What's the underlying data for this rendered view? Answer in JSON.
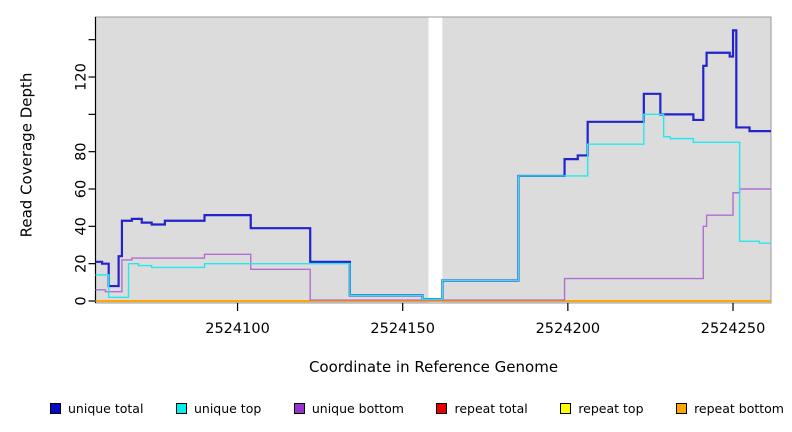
{
  "chart_data": {
    "type": "line",
    "subtype": "step-after",
    "title": "",
    "xlabel": "Coordinate in Reference Genome",
    "ylabel": "Read Coverage Depth",
    "x_domain": [
      2524057,
      2524261.5
    ],
    "y_domain_visible": [
      0,
      152
    ],
    "x_ticks": [
      2524100,
      2524150,
      2524200,
      2524250
    ],
    "x_tick_labels": [
      "2524100",
      "2524150",
      "2524200",
      "2524250"
    ],
    "y_ticks": [
      0,
      20,
      40,
      60,
      80,
      100,
      120,
      140
    ],
    "y_tick_labels_shown": [
      0,
      20,
      40,
      60,
      80,
      120
    ],
    "grid": false,
    "panel_background": "#dcdcdc",
    "panel_border": "#9a9a9a",
    "gap_band": {
      "x_start": 2524157.8,
      "x_end": 2524162,
      "color": "#ffffff"
    },
    "legend_position": "bottom",
    "series": [
      {
        "name": "repeat total",
        "color": "#e00000",
        "width": 1.4,
        "steps": [
          [
            2524057,
            0
          ]
        ]
      },
      {
        "name": "repeat top",
        "color": "#ffff00",
        "width": 1.4,
        "steps": [
          [
            2524057,
            0
          ]
        ]
      },
      {
        "name": "repeat bottom",
        "color": "#ffa500",
        "width": 1.8,
        "steps": [
          [
            2524057,
            0
          ]
        ]
      },
      {
        "name": "unique total",
        "color": "#2323ce",
        "width": 2.2,
        "steps": [
          [
            2524057,
            21
          ],
          [
            2524059,
            20
          ],
          [
            2524061,
            8
          ],
          [
            2524064,
            24
          ],
          [
            2524065,
            43
          ],
          [
            2524068,
            44
          ],
          [
            2524071,
            42
          ],
          [
            2524074,
            41
          ],
          [
            2524078,
            43
          ],
          [
            2524090,
            46
          ],
          [
            2524104,
            39
          ],
          [
            2524122,
            21
          ],
          [
            2524134,
            3
          ],
          [
            2524156,
            1
          ],
          [
            2524162,
            11
          ],
          [
            2524185,
            67
          ],
          [
            2524199,
            76
          ],
          [
            2524203,
            78
          ],
          [
            2524206,
            96
          ],
          [
            2524223,
            111
          ],
          [
            2524228,
            100
          ],
          [
            2524238,
            97
          ],
          [
            2524241,
            126
          ],
          [
            2524242,
            133
          ],
          [
            2524249,
            131
          ],
          [
            2524250,
            145
          ],
          [
            2524251,
            93
          ],
          [
            2524255,
            91
          ]
        ]
      },
      {
        "name": "unique bottom",
        "color": "#b06fd0",
        "width": 1.4,
        "steps": [
          [
            2524057,
            6
          ],
          [
            2524060,
            5
          ],
          [
            2524065,
            22
          ],
          [
            2524068,
            23
          ],
          [
            2524090,
            25
          ],
          [
            2524104,
            17
          ],
          [
            2524122,
            0.5
          ],
          [
            2524199,
            12
          ],
          [
            2524241,
            40
          ],
          [
            2524242,
            46
          ],
          [
            2524250,
            58
          ],
          [
            2524252,
            60
          ]
        ]
      },
      {
        "name": "unique top",
        "color": "#25e8ee",
        "width": 1.4,
        "steps": [
          [
            2524057,
            14
          ],
          [
            2524061,
            2
          ],
          [
            2524067,
            20
          ],
          [
            2524070,
            19
          ],
          [
            2524074,
            18
          ],
          [
            2524090,
            20
          ],
          [
            2524134,
            3
          ],
          [
            2524156,
            1
          ],
          [
            2524162,
            11
          ],
          [
            2524185,
            67
          ],
          [
            2524206,
            84
          ],
          [
            2524223,
            100
          ],
          [
            2524229,
            88
          ],
          [
            2524231,
            87
          ],
          [
            2524238,
            85
          ],
          [
            2524252,
            32
          ],
          [
            2524258,
            31
          ]
        ]
      }
    ]
  },
  "legend": {
    "items": [
      {
        "label": "unique total",
        "color": "#0808c8"
      },
      {
        "label": "unique top",
        "color": "#00f0f0"
      },
      {
        "label": "unique bottom",
        "color": "#9932cc"
      },
      {
        "label": "repeat total",
        "color": "#e60000"
      },
      {
        "label": "repeat top",
        "color": "#ffff00"
      },
      {
        "label": "repeat bottom",
        "color": "#ffa500"
      }
    ]
  },
  "axes": {
    "x_title": "Coordinate in Reference Genome",
    "y_title": "Read Coverage Depth"
  }
}
